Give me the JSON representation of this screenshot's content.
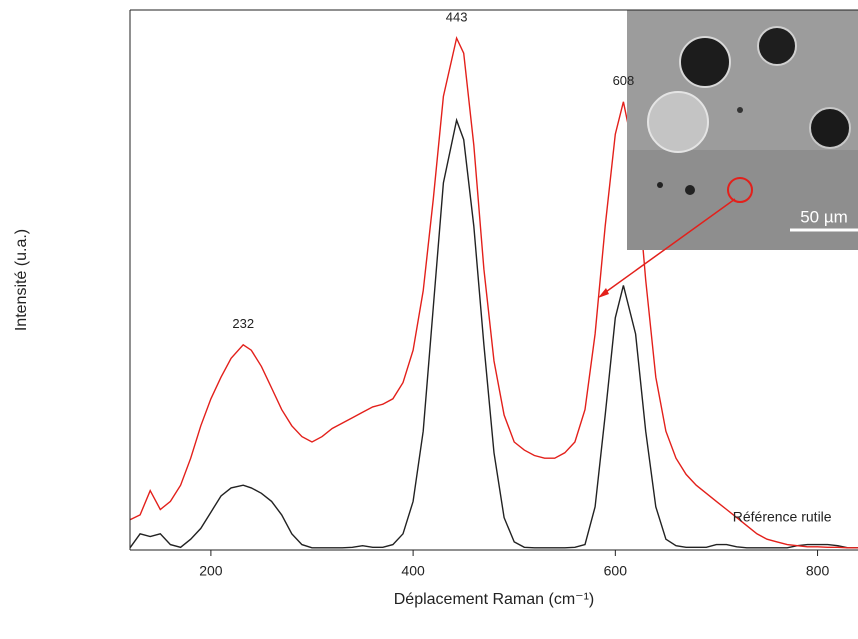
{
  "chart_data": {
    "type": "line",
    "xlabel": "Déplacement Raman (cm⁻¹)",
    "ylabel": "Intensité (u.a.)",
    "x": [
      120,
      130,
      140,
      150,
      160,
      170,
      180,
      190,
      200,
      210,
      220,
      232,
      240,
      250,
      260,
      270,
      280,
      290,
      300,
      310,
      320,
      330,
      340,
      350,
      360,
      370,
      380,
      390,
      400,
      410,
      420,
      430,
      443,
      450,
      460,
      470,
      480,
      490,
      500,
      510,
      520,
      530,
      540,
      550,
      560,
      570,
      580,
      590,
      600,
      608,
      620,
      630,
      640,
      650,
      660,
      670,
      680,
      690,
      700,
      710,
      720,
      730,
      740,
      750,
      760,
      770,
      780,
      790,
      800,
      810,
      820,
      830,
      840
    ],
    "series": [
      {
        "color": "#e3201b",
        "values": [
          5.6,
          6.5,
          11,
          7.5,
          9,
          12,
          17,
          23,
          28,
          32,
          35.5,
          38,
          37,
          34,
          30,
          26,
          23,
          21,
          20,
          21,
          22.5,
          23.5,
          24.5,
          25.5,
          26.5,
          27,
          28,
          31,
          37,
          48,
          65,
          84,
          94.8,
          92,
          75,
          52,
          35,
          25,
          20,
          18.5,
          17.5,
          17,
          17,
          18,
          20,
          26,
          40,
          60,
          77,
          83,
          72,
          50,
          32,
          22,
          17,
          14,
          12,
          10.5,
          9,
          7.5,
          6,
          4.5,
          3,
          2,
          1.5,
          1,
          0.8,
          0.6,
          0.6,
          0.5,
          0.5,
          0.4,
          0.4
        ]
      },
      {
        "color": "#222222",
        "values": [
          0.4,
          3,
          2.5,
          3,
          1,
          0.5,
          2,
          4,
          7,
          10,
          11.5,
          12,
          11.5,
          10.5,
          9,
          6.5,
          3,
          1,
          0.4,
          0.4,
          0.4,
          0.4,
          0.5,
          0.8,
          0.5,
          0.5,
          1,
          3,
          9,
          22,
          45,
          68,
          79.6,
          76,
          60,
          38,
          18,
          6,
          1.5,
          0.5,
          0.4,
          0.4,
          0.4,
          0.4,
          0.5,
          1,
          8,
          25,
          43,
          49,
          40,
          22,
          8,
          2,
          0.8,
          0.5,
          0.5,
          0.5,
          1,
          1,
          0.6,
          0.4,
          0.4,
          0.4,
          0.4,
          0.4,
          0.8,
          1,
          1,
          1,
          0.8,
          0.4,
          0.4
        ]
      }
    ],
    "annotations": [
      {
        "text": "232",
        "x": 232,
        "y": 38
      },
      {
        "text": "443",
        "x": 443,
        "y": 94.8
      },
      {
        "text": "608",
        "x": 608,
        "y": 83
      },
      {
        "text": "Référence rutile",
        "x": 765,
        "y": 6
      }
    ],
    "xlim": [
      120,
      840
    ],
    "ylim": [
      0,
      100
    ],
    "xticks": [
      200,
      400,
      600,
      800
    ]
  },
  "inset": {
    "scale_label": "50 µm"
  }
}
